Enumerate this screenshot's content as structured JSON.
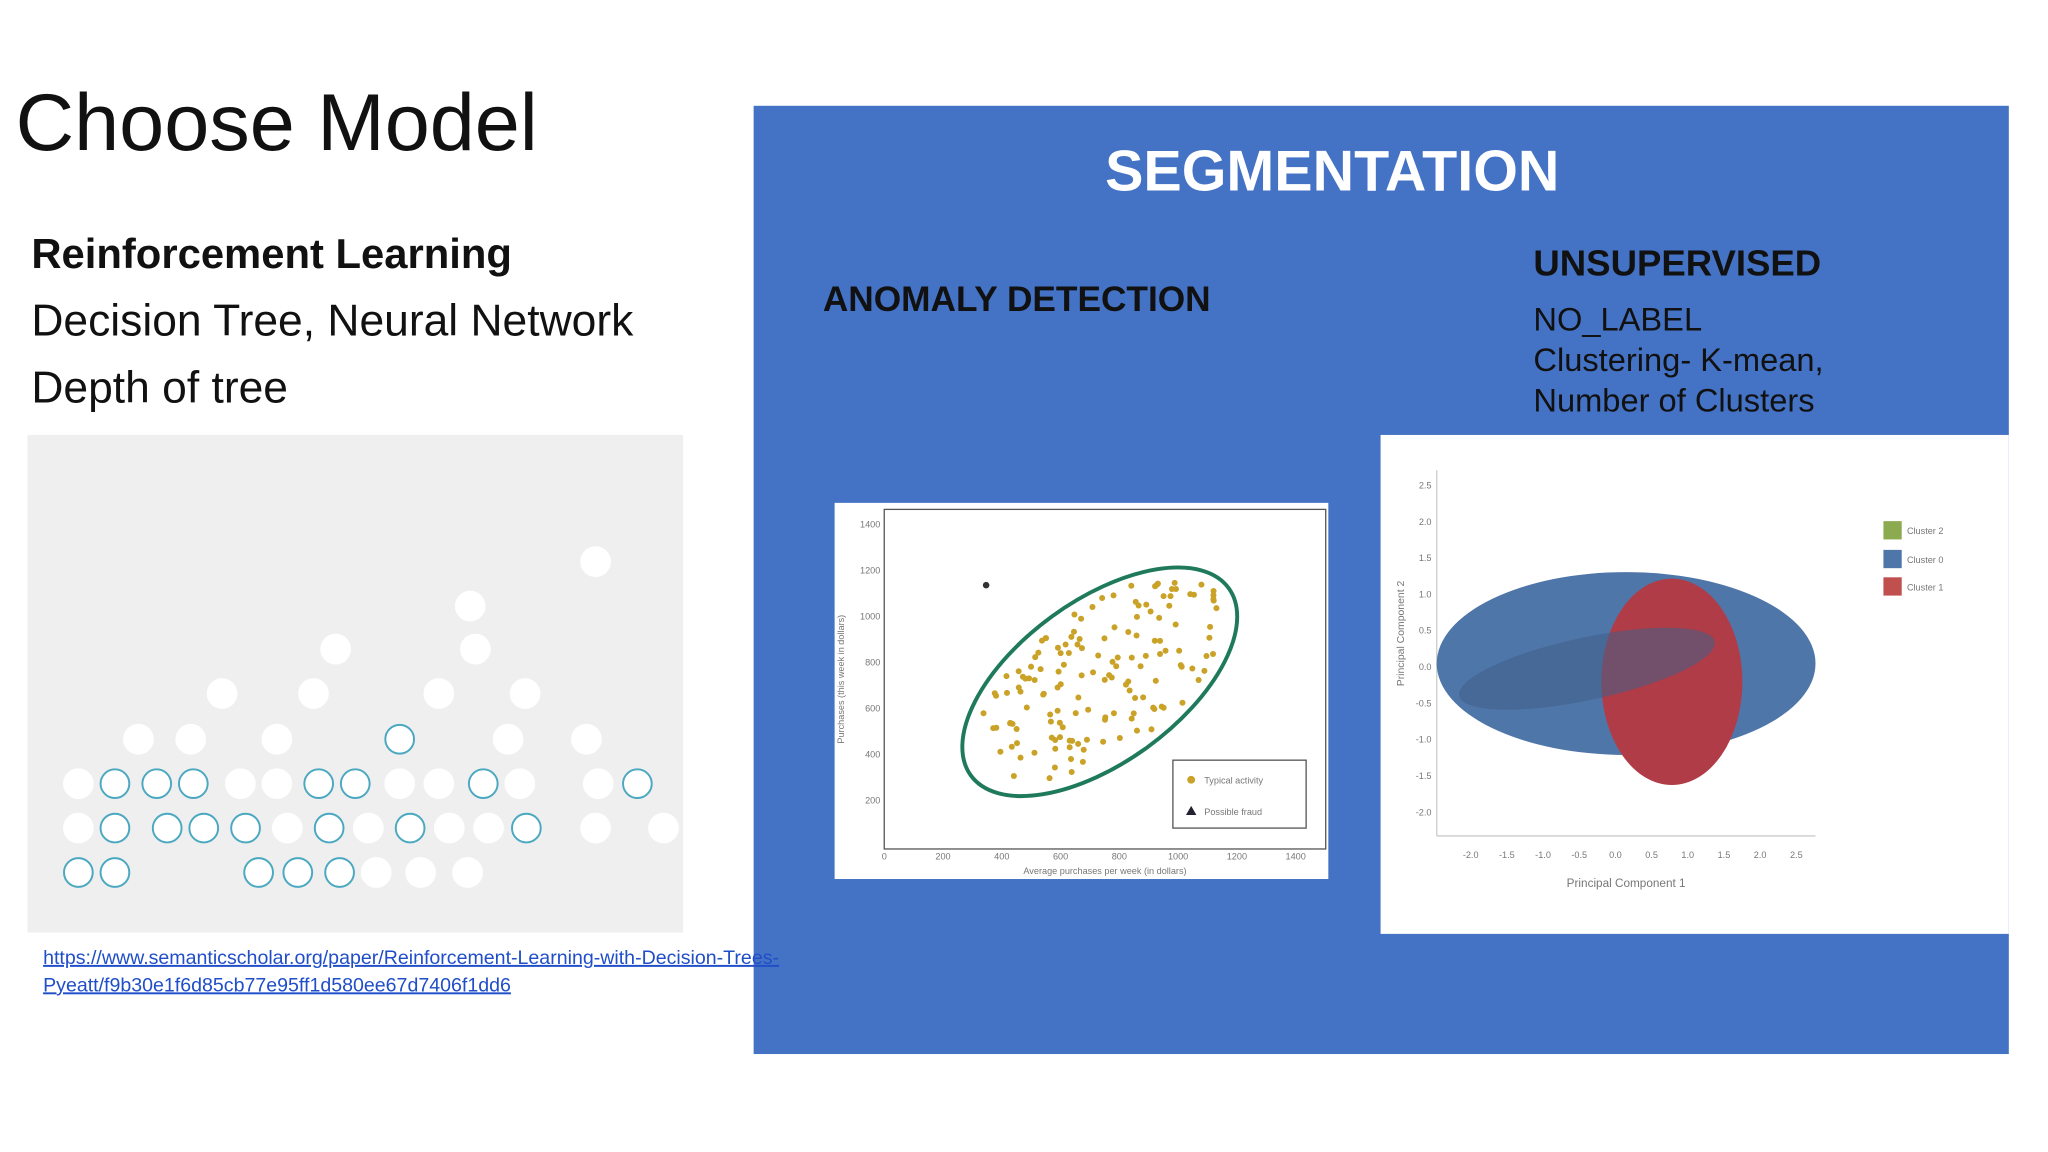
{
  "title": "Choose Model",
  "left": {
    "heading": "Reinforcement Learning",
    "lines": [
      "Decision Tree, Neural Network",
      "Depth of tree"
    ],
    "link": [
      "https://www.semanticscholar.org/paper/Reinforcement-Learning-with-Decision-Trees-",
      "Pyeatt/f9b30e1f6d85cb77e95ff1d580ee67d7406f1dd6"
    ]
  },
  "segmentation": {
    "title": "SEGMENTATION",
    "anomaly": {
      "heading": "ANOMALY DETECTION",
      "figure": {
        "x_label": "Average purchases per week (in dollars)",
        "y_label": "Purchases (this week in dollars)",
        "x_ticks": [
          "0",
          "200",
          "400",
          "600",
          "800",
          "1000",
          "1200",
          "1400"
        ],
        "y_ticks": [
          "1400",
          "1200",
          "1000",
          "800",
          "600",
          "400",
          "200"
        ],
        "legend": [
          "Typical activity",
          "Possible fraud"
        ]
      }
    },
    "unsupervised": {
      "heading": "UNSUPERVISED",
      "lines": [
        "NO_LABEL",
        "Clustering- K-mean,",
        "Number of Clusters"
      ],
      "figure": {
        "x_label": "Principal Component 1",
        "y_label": "Principal Component 2",
        "x_ticks": [
          "-2.0",
          "-1.5",
          "-1.0",
          "-0.5",
          "0.0",
          "0.5",
          "1.0",
          "1.5",
          "2.0",
          "2.5"
        ],
        "y_ticks": [
          "2.5",
          "2.0",
          "1.5",
          "1.0",
          "0.5",
          "0.0",
          "-0.5",
          "-1.0",
          "-1.5",
          "-2.0"
        ],
        "legend": [
          "Cluster 2",
          "Cluster 0",
          "Cluster 1"
        ]
      }
    }
  }
}
